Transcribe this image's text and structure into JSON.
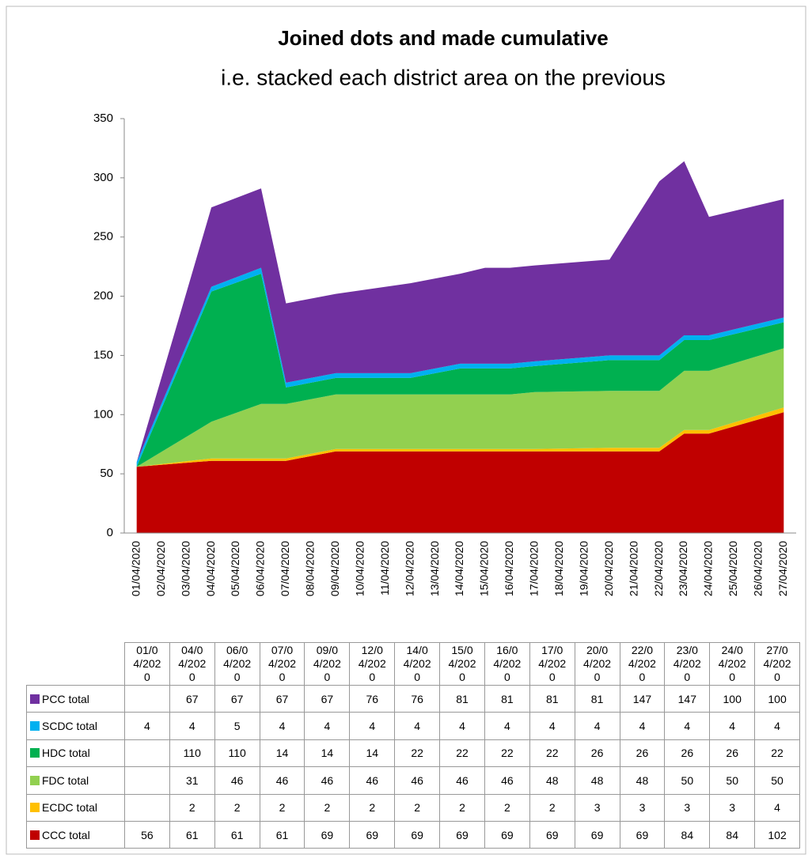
{
  "chart_data": {
    "type": "stacked_area",
    "title": "Joined dots and made cumulative",
    "subtitle": "i.e. stacked each district area on the previous",
    "categories": [
      "01/04/2020",
      "02/04/2020",
      "03/04/2020",
      "04/04/2020",
      "05/04/2020",
      "06/04/2020",
      "07/04/2020",
      "08/04/2020",
      "09/04/2020",
      "10/04/2020",
      "11/04/2020",
      "12/04/2020",
      "13/04/2020",
      "14/04/2020",
      "15/04/2020",
      "16/04/2020",
      "17/04/2020",
      "18/04/2020",
      "19/04/2020",
      "20/04/2020",
      "21/04/2020",
      "22/04/2020",
      "23/04/2020",
      "24/04/2020",
      "25/04/2020",
      "26/04/2020",
      "27/04/2020"
    ],
    "x": [
      "01/04/2020",
      "04/04/2020",
      "06/04/2020",
      "07/04/2020",
      "09/04/2020",
      "12/04/2020",
      "14/04/2020",
      "15/04/2020",
      "16/04/2020",
      "17/04/2020",
      "20/04/2020",
      "22/04/2020",
      "23/04/2020",
      "24/04/2020",
      "27/04/2020"
    ],
    "series": [
      {
        "name": "PCC total",
        "color": "#7030a0",
        "values": [
          null,
          67,
          67,
          67,
          67,
          76,
          76,
          81,
          81,
          81,
          81,
          147,
          147,
          100,
          100
        ]
      },
      {
        "name": "SCDC total",
        "color": "#00b0f0",
        "values": [
          4,
          4,
          5,
          4,
          4,
          4,
          4,
          4,
          4,
          4,
          4,
          4,
          4,
          4,
          4
        ]
      },
      {
        "name": "HDC total",
        "color": "#00b050",
        "values": [
          null,
          110,
          110,
          14,
          14,
          14,
          22,
          22,
          22,
          22,
          26,
          26,
          26,
          26,
          22
        ]
      },
      {
        "name": "FDC total",
        "color": "#92d050",
        "values": [
          null,
          31,
          46,
          46,
          46,
          46,
          46,
          46,
          46,
          48,
          48,
          48,
          50,
          50,
          50
        ]
      },
      {
        "name": "ECDC total",
        "color": "#ffc000",
        "values": [
          null,
          2,
          2,
          2,
          2,
          2,
          2,
          2,
          2,
          2,
          3,
          3,
          3,
          3,
          4
        ]
      },
      {
        "name": "CCC total",
        "color": "#c00000",
        "values": [
          56,
          61,
          61,
          61,
          69,
          69,
          69,
          69,
          69,
          69,
          69,
          69,
          84,
          84,
          102
        ]
      }
    ],
    "ylim": [
      0,
      350
    ],
    "yticks": [
      0,
      50,
      100,
      150,
      200,
      250,
      300,
      350
    ]
  }
}
